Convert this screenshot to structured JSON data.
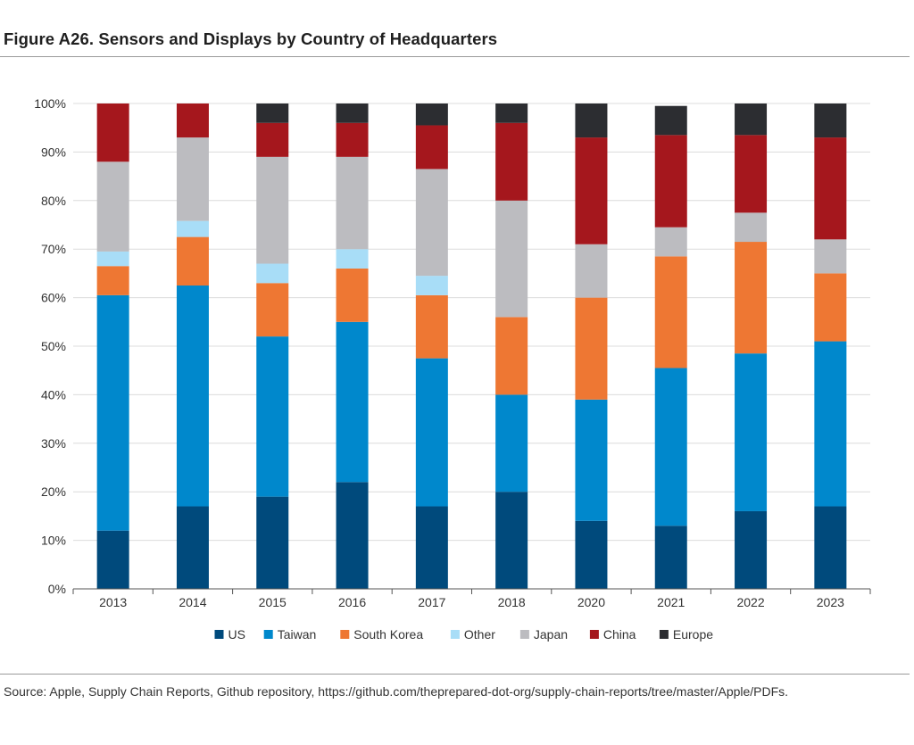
{
  "figure_title": "Figure A26. Sensors and Displays by Country of Headquarters",
  "source_note": "Source: Apple, Supply Chain Reports, Github repository, https://github.com/theprepared-dot-org/supply-chain-reports/tree/master/Apple/PDFs.",
  "chart_data": {
    "type": "bar",
    "stacked": true,
    "categories": [
      "2013",
      "2014",
      "2015",
      "2016",
      "2017",
      "2018",
      "2020",
      "2021",
      "2022",
      "2023"
    ],
    "ylim": [
      0,
      100
    ],
    "yticks": [
      "0%",
      "10%",
      "20%",
      "30%",
      "40%",
      "50%",
      "60%",
      "70%",
      "80%",
      "90%",
      "100%"
    ],
    "grid": true,
    "legend_position": "bottom",
    "series": [
      {
        "name": "US",
        "color": "#004a7c",
        "values": [
          12,
          17,
          19,
          22,
          17,
          20,
          14,
          13,
          16,
          17
        ]
      },
      {
        "name": "Taiwan",
        "color": "#0088cc",
        "values": [
          48.5,
          45.5,
          33,
          33,
          30.5,
          20,
          25,
          32.5,
          32.5,
          34
        ]
      },
      {
        "name": "South Korea",
        "color": "#ee7733",
        "values": [
          6,
          10,
          11,
          11,
          13,
          16,
          21,
          23,
          23,
          14
        ]
      },
      {
        "name": "Other",
        "color": "#a8ddf7",
        "values": [
          3,
          3.3,
          4,
          4,
          4,
          0,
          0,
          0,
          0,
          0
        ]
      },
      {
        "name": "Japan",
        "color": "#bcbcc0",
        "values": [
          18.5,
          17.2,
          22,
          19,
          22,
          24,
          11,
          6,
          6,
          7
        ]
      },
      {
        "name": "China",
        "color": "#a5171d",
        "values": [
          12,
          7,
          7,
          7,
          9,
          16,
          22,
          19,
          16,
          21
        ]
      },
      {
        "name": "Europe",
        "color": "#2c2d31",
        "values": [
          0,
          0,
          4,
          4,
          4.5,
          4,
          7,
          6,
          6.5,
          7
        ]
      }
    ]
  }
}
